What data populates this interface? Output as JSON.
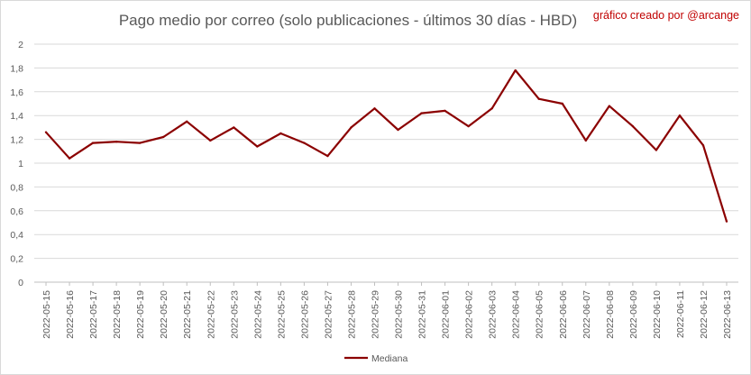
{
  "chart_data": {
    "type": "line",
    "title": "Pago medio por correo (solo publicaciones - últimos 30 días - HBD)",
    "credit": "gráfico creado por @arcange",
    "ylim": [
      0,
      2
    ],
    "yticks": [
      "0",
      "0,2",
      "0,4",
      "0,6",
      "0,8",
      "1",
      "1,2",
      "1,4",
      "1,6",
      "1,8",
      "2"
    ],
    "grid": true,
    "legend_position": "bottom",
    "colors": {
      "series": "#8b0000",
      "credit": "#c00000"
    },
    "categories": [
      "2022-05-15",
      "2022-05-16",
      "2022-05-17",
      "2022-05-18",
      "2022-05-19",
      "2022-05-20",
      "2022-05-21",
      "2022-05-22",
      "2022-05-23",
      "2022-05-24",
      "2022-05-25",
      "2022-05-26",
      "2022-05-27",
      "2022-05-28",
      "2022-05-29",
      "2022-05-30",
      "2022-05-31",
      "2022-06-01",
      "2022-06-02",
      "2022-06-03",
      "2022-06-04",
      "2022-06-05",
      "2022-06-06",
      "2022-06-07",
      "2022-06-08",
      "2022-06-09",
      "2022-06-10",
      "2022-06-11",
      "2022-06-12",
      "2022-06-13"
    ],
    "series": [
      {
        "name": "Mediana",
        "values": [
          1.26,
          1.04,
          1.17,
          1.18,
          1.17,
          1.22,
          1.35,
          1.19,
          1.3,
          1.14,
          1.25,
          1.17,
          1.06,
          1.3,
          1.46,
          1.28,
          1.42,
          1.44,
          1.31,
          1.46,
          1.78,
          1.54,
          1.5,
          1.19,
          1.48,
          1.31,
          1.11,
          1.4,
          1.15,
          0.51
        ]
      }
    ]
  }
}
